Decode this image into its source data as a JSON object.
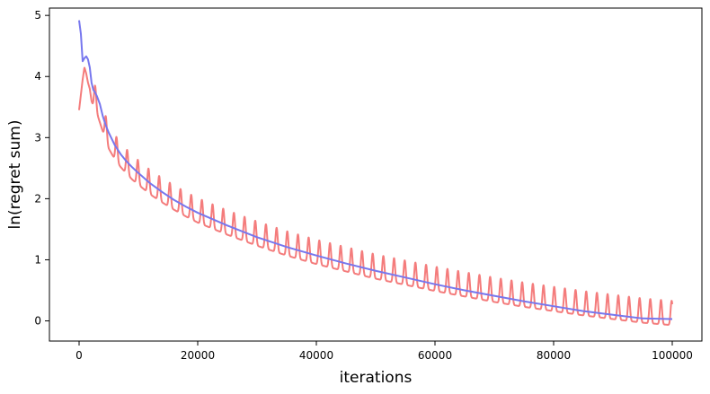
{
  "chart_data": {
    "type": "line",
    "title": "",
    "xlabel": "iterations",
    "ylabel": "ln(regret sum)",
    "xlim": [
      -5000,
      105000
    ],
    "ylim": [
      -0.33,
      5.12
    ],
    "xticks": [
      0,
      20000,
      40000,
      60000,
      80000,
      100000
    ],
    "xtick_labels": [
      "0",
      "20000",
      "40000",
      "60000",
      "80000",
      "100000"
    ],
    "yticks": [
      0,
      1,
      2,
      3,
      4,
      5
    ],
    "ytick_labels": [
      "0",
      "1",
      "2",
      "3",
      "4",
      "5"
    ],
    "grid": false,
    "legend": "none",
    "series": [
      {
        "color": "#7777ee",
        "x": [
          0,
          300,
          600,
          900,
          1200,
          1500,
          1800,
          2100,
          2400,
          2700,
          3000,
          3500,
          4000,
          4500,
          5000,
          6000,
          7000,
          8000,
          9000,
          10000,
          12000,
          14000,
          16000,
          18000,
          20000,
          25000,
          30000,
          35000,
          40000,
          45000,
          50000,
          55000,
          60000,
          65000,
          70000,
          75000,
          80000,
          85000,
          90000,
          95000,
          100000
        ],
        "y": [
          4.92,
          4.7,
          4.25,
          4.3,
          4.33,
          4.28,
          4.15,
          3.9,
          3.78,
          3.74,
          3.68,
          3.55,
          3.35,
          3.2,
          3.08,
          2.88,
          2.73,
          2.61,
          2.51,
          2.42,
          2.25,
          2.11,
          1.98,
          1.87,
          1.77,
          1.56,
          1.37,
          1.21,
          1.07,
          0.94,
          0.82,
          0.71,
          0.6,
          0.5,
          0.41,
          0.32,
          0.24,
          0.16,
          0.1,
          0.04,
          0.03
        ]
      },
      {
        "color": "#f47c7c",
        "base_x": [
          0,
          300,
          600,
          900,
          1200,
          1500,
          1800,
          2100,
          2400,
          2700,
          3000,
          3500,
          4000,
          4500,
          5000,
          6000,
          7000,
          8000,
          9000,
          10000,
          12000,
          14000,
          16000,
          18000,
          20000,
          25000,
          30000,
          35000,
          40000,
          45000,
          50000,
          55000,
          60000,
          65000,
          70000,
          75000,
          80000,
          85000,
          90000,
          95000,
          100000
        ],
        "base_y": [
          3.45,
          3.7,
          3.95,
          4.15,
          4.05,
          3.9,
          3.8,
          3.6,
          3.5,
          3.45,
          3.4,
          3.25,
          3.1,
          2.95,
          2.82,
          2.65,
          2.52,
          2.41,
          2.31,
          2.23,
          2.07,
          1.94,
          1.82,
          1.71,
          1.61,
          1.41,
          1.23,
          1.07,
          0.93,
          0.81,
          0.69,
          0.59,
          0.49,
          0.4,
          0.31,
          0.23,
          0.16,
          0.09,
          0.03,
          -0.03,
          -0.07
        ],
        "spike_period": 1800,
        "spike_height": 0.4
      }
    ]
  }
}
